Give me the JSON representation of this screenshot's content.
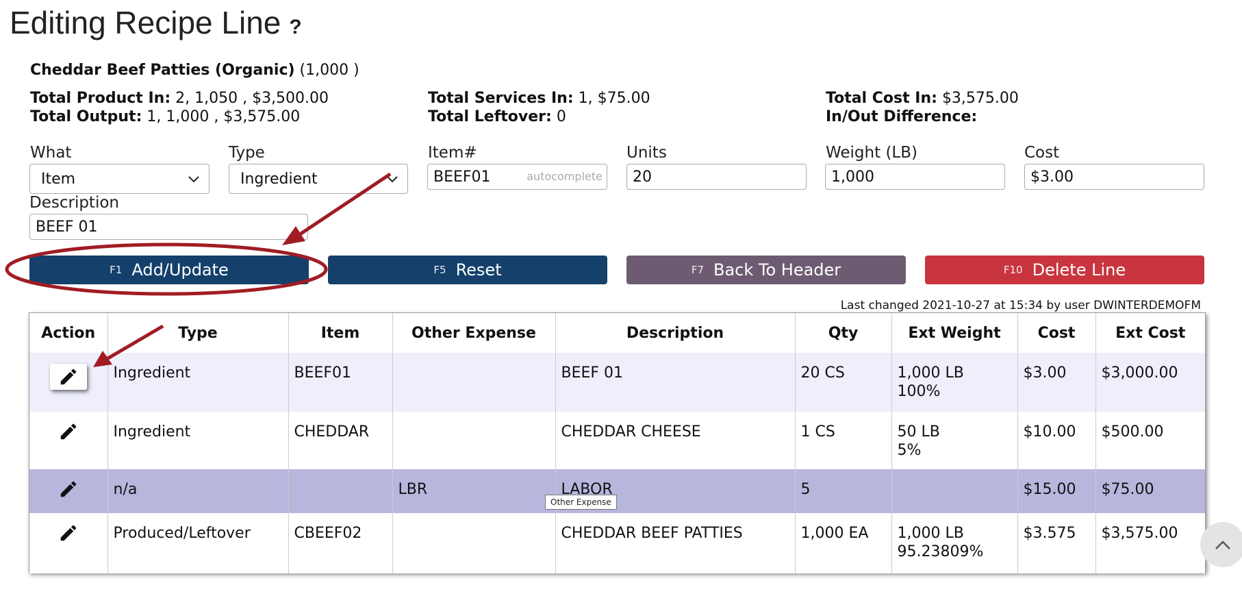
{
  "page": {
    "title": "Editing Recipe Line",
    "help_glyph": "?"
  },
  "recipe": {
    "name": "Cheddar Beef Patties (Organic)",
    "qty": "(1,000 )"
  },
  "stats": {
    "product_in_label": "Total Product In:",
    "product_in_value": "2, 1,050 , $3,500.00",
    "output_label": "Total Output:",
    "output_value": "1, 1,000 , $3,575.00",
    "services_in_label": "Total Services In:",
    "services_in_value": "1, $75.00",
    "leftover_label": "Total Leftover:",
    "leftover_value": "0",
    "cost_in_label": "Total Cost In:",
    "cost_in_value": "$3,575.00",
    "difference_label": "In/Out Difference:",
    "difference_value": ""
  },
  "form": {
    "what_label": "What",
    "what_value": "Item",
    "type_label": "Type",
    "type_value": "Ingredient",
    "item_label": "Item#",
    "item_value": "BEEF01",
    "item_hint": "autocomplete",
    "units_label": "Units",
    "units_value": "20",
    "weight_label": "Weight (LB)",
    "weight_value": "1,000",
    "cost_label": "Cost",
    "cost_value": "$3.00",
    "description_label": "Description",
    "description_value": "BEEF 01"
  },
  "buttons": {
    "add": {
      "key": "F1",
      "label": "Add/Update"
    },
    "reset": {
      "key": "F5",
      "label": "Reset"
    },
    "back": {
      "key": "F7",
      "label": "Back To Header"
    },
    "delete": {
      "key": "F10",
      "label": "Delete Line"
    }
  },
  "last_changed": "Last changed 2021-10-27 at 15:34 by user DWINTERDEMOFM",
  "table": {
    "headers": [
      "Action",
      "Type",
      "Item",
      "Other Expense",
      "Description",
      "Qty",
      "Ext Weight",
      "Cost",
      "Ext Cost"
    ],
    "rows": [
      {
        "type": "Ingredient",
        "item": "BEEF01",
        "other_expense": "",
        "description": "BEEF 01",
        "qty": "20 CS",
        "ext_weight": "1,000 LB",
        "ext_weight_pct": "100%",
        "cost": "$3.00",
        "ext_cost": "$3,000.00"
      },
      {
        "type": "Ingredient",
        "item": "CHEDDAR",
        "other_expense": "",
        "description": "CHEDDAR CHEESE",
        "qty": "1 CS",
        "ext_weight": "50 LB",
        "ext_weight_pct": "5%",
        "cost": "$10.00",
        "ext_cost": "$500.00"
      },
      {
        "type": "n/a",
        "item": "",
        "other_expense": "LBR",
        "description": "LABOR",
        "qty": "5",
        "ext_weight": "",
        "ext_weight_pct": "",
        "cost": "$15.00",
        "ext_cost": "$75.00"
      },
      {
        "type": "Produced/Leftover",
        "item": "CBEEF02",
        "other_expense": "",
        "description": "CHEDDAR BEEF PATTIES",
        "qty": "1,000 EA",
        "ext_weight": "1,000 LB",
        "ext_weight_pct": "95.23809%",
        "cost": "$3.575",
        "ext_cost": "$3,575.00"
      }
    ]
  },
  "tooltip": "Other Expense",
  "icons": {
    "edit": "pencil-icon",
    "help": "question-icon",
    "dropdown": "chevron-down-icon",
    "scroll_top": "chevron-up-icon"
  },
  "colors": {
    "primary_button": "#14406b",
    "secondary_button": "#6c5b71",
    "danger_button": "#c8353f",
    "selected_row": "#b7b7de",
    "alt_row": "#eeeffb",
    "annotation": "#a01c24"
  }
}
